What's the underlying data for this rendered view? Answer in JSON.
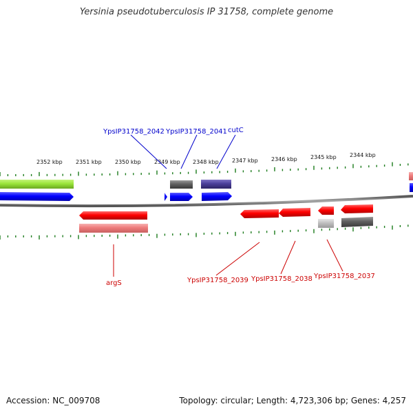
{
  "title": "Yersinia pseudotuberculosis IP 31758, complete genome",
  "footer": {
    "accession": "Accession: NC_009708",
    "summary": "Topology: circular; Length: 4,723,306 bp; Genes: 4,257"
  },
  "scale_labels": [
    "2352 kbp",
    "2351 kbp",
    "2350 kbp",
    "2349 kbp",
    "2348 kbp",
    "2347 kbp",
    "2346 kbp",
    "2345 kbp",
    "2344 kbp"
  ],
  "gene_labels_top": [
    "YpsIP31758_2042",
    "YpsIP31758_2041",
    "cutC"
  ],
  "gene_labels_bottom": [
    "argS",
    "YpsIP31758_2039",
    "YpsIP31758_2038",
    "YpsIP31758_2037"
  ],
  "colors": {
    "forward_cds": "#0000ff",
    "reverse_cds": "#ff0000",
    "reverse_gene": "#f08080",
    "hypothetical": "#606060",
    "light_gray": "#c0c0c0",
    "purple": "#4b3f9a",
    "green": "#8fd61e",
    "tick": "#1a7a1a",
    "backbone": "#777777",
    "top_label": "#0000cc",
    "bottom_label": "#cc0000"
  }
}
